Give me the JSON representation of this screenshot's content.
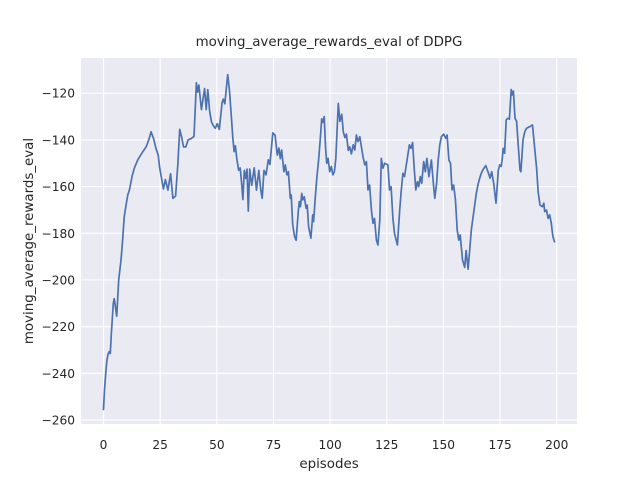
{
  "figure": {
    "title": "moving_average_rewards_eval of DDPG",
    "x_axis_label": "episodes",
    "y_axis_label": "moving_average_rewards_eval"
  },
  "chart_data": {
    "type": "line",
    "title": "moving_average_rewards_eval of DDPG",
    "xlabel": "episodes",
    "ylabel": "moving_average_rewards_eval",
    "x_ticks": [
      0,
      25,
      50,
      75,
      100,
      125,
      150,
      175,
      200
    ],
    "y_ticks": [
      -120,
      -140,
      -160,
      -180,
      -200,
      -220,
      -240,
      -260
    ],
    "xlim": [
      -9.95,
      208.95
    ],
    "ylim": [
      -261.7,
      -104.9
    ],
    "grid": true,
    "legend": false,
    "axes_background": "#eaeaf2",
    "grid_color": "#ffffff",
    "line_color": "#4c72b0",
    "text_color": "#262626",
    "figure_background": "#ffffff",
    "series": [
      {
        "name": "moving_average_rewards_eval",
        "points": [
          [
            0,
            -255.5
          ],
          [
            0.4,
            -247
          ],
          [
            1.1,
            -238.5
          ],
          [
            1.5,
            -234.5
          ],
          [
            1.9,
            -232
          ],
          [
            2.5,
            -230.7
          ],
          [
            3,
            -231.5
          ],
          [
            3.4,
            -224
          ],
          [
            4.3,
            -210
          ],
          [
            4.7,
            -208
          ],
          [
            5.3,
            -212
          ],
          [
            5.8,
            -215.5
          ],
          [
            6.7,
            -200
          ],
          [
            7.7,
            -191.5
          ],
          [
            8.4,
            -183
          ],
          [
            9.1,
            -173
          ],
          [
            10,
            -167.5
          ],
          [
            10.7,
            -163.5
          ],
          [
            11.4,
            -161.5
          ],
          [
            12.6,
            -155.5
          ],
          [
            13.6,
            -152
          ],
          [
            15.1,
            -148.5
          ],
          [
            17,
            -145.5
          ],
          [
            18.8,
            -143
          ],
          [
            20.1,
            -139.5
          ],
          [
            21,
            -136.5
          ],
          [
            22.1,
            -139.5
          ],
          [
            23.1,
            -143.5
          ],
          [
            24.1,
            -146.5
          ],
          [
            24.8,
            -152
          ],
          [
            26.4,
            -161
          ],
          [
            27.3,
            -157
          ],
          [
            28.4,
            -161.5
          ],
          [
            29.6,
            -154.5
          ],
          [
            30.6,
            -165
          ],
          [
            31.8,
            -164
          ],
          [
            32.8,
            -150
          ],
          [
            33.6,
            -135.5
          ],
          [
            34.4,
            -138.5
          ],
          [
            35.3,
            -143
          ],
          [
            36.3,
            -143
          ],
          [
            37.3,
            -140
          ],
          [
            38.5,
            -139.5
          ],
          [
            39.9,
            -138.5
          ],
          [
            41,
            -115.5
          ],
          [
            41.5,
            -119.5
          ],
          [
            42.1,
            -116.5
          ],
          [
            43.2,
            -127
          ],
          [
            44.6,
            -118
          ],
          [
            45.3,
            -127
          ],
          [
            46,
            -118.5
          ],
          [
            46.8,
            -127.5
          ],
          [
            47.6,
            -132.2
          ],
          [
            48.4,
            -133.8
          ],
          [
            49.3,
            -135
          ],
          [
            50.2,
            -133
          ],
          [
            51.1,
            -135.5
          ],
          [
            52.3,
            -124
          ],
          [
            52.9,
            -122.5
          ],
          [
            53.5,
            -124.5
          ],
          [
            54.8,
            -112
          ],
          [
            55.6,
            -119
          ],
          [
            56.3,
            -128.5
          ],
          [
            57,
            -138.5
          ],
          [
            57.6,
            -145
          ],
          [
            58.2,
            -142.5
          ],
          [
            58.8,
            -148
          ],
          [
            59.6,
            -153
          ],
          [
            60.3,
            -152
          ],
          [
            60.9,
            -158
          ],
          [
            61.5,
            -165.5
          ],
          [
            62.1,
            -153
          ],
          [
            62.7,
            -156.5
          ],
          [
            63.3,
            -152.5
          ],
          [
            63.9,
            -170.5
          ],
          [
            64.5,
            -152.5
          ],
          [
            65.4,
            -159.5
          ],
          [
            66.5,
            -152
          ],
          [
            67.5,
            -161.5
          ],
          [
            68.5,
            -153
          ],
          [
            69.4,
            -161.5
          ],
          [
            70,
            -165
          ],
          [
            70.8,
            -153
          ],
          [
            71.7,
            -155
          ],
          [
            72.7,
            -148.5
          ],
          [
            73.4,
            -150.5
          ],
          [
            74.7,
            -137
          ],
          [
            75.7,
            -138
          ],
          [
            76.7,
            -146.5
          ],
          [
            77.4,
            -143.5
          ],
          [
            78,
            -148
          ],
          [
            78.6,
            -144.3
          ],
          [
            79.6,
            -153.6
          ],
          [
            80.2,
            -150.7
          ],
          [
            80.9,
            -155
          ],
          [
            81.6,
            -153.6
          ],
          [
            82.4,
            -165
          ],
          [
            82.8,
            -163.6
          ],
          [
            83.5,
            -176.4
          ],
          [
            84.3,
            -181.4
          ],
          [
            85,
            -183
          ],
          [
            86,
            -170
          ],
          [
            86.4,
            -166.4
          ],
          [
            86.9,
            -168.6
          ],
          [
            87.5,
            -162.9
          ],
          [
            87.9,
            -165.7
          ],
          [
            88.6,
            -164.3
          ],
          [
            89.4,
            -169.3
          ],
          [
            89.9,
            -167.9
          ],
          [
            90.5,
            -177.1
          ],
          [
            91.5,
            -182.1
          ],
          [
            92.3,
            -172.1
          ],
          [
            92.7,
            -175
          ],
          [
            93.4,
            -165
          ],
          [
            94.1,
            -156.4
          ],
          [
            94.9,
            -148.6
          ],
          [
            95.6,
            -140
          ],
          [
            96.3,
            -131
          ],
          [
            96.9,
            -132.5
          ],
          [
            97.4,
            -130
          ],
          [
            98,
            -143.6
          ],
          [
            98.5,
            -150
          ],
          [
            99.1,
            -147.9
          ],
          [
            99.8,
            -153.6
          ],
          [
            100.5,
            -151.4
          ],
          [
            101.2,
            -155
          ],
          [
            101.9,
            -153.6
          ],
          [
            102.5,
            -148
          ],
          [
            103.6,
            -124.3
          ],
          [
            104.3,
            -132
          ],
          [
            105.1,
            -129
          ],
          [
            105.8,
            -136.5
          ],
          [
            106.5,
            -139
          ],
          [
            107.2,
            -137.5
          ],
          [
            108,
            -144.5
          ],
          [
            108.7,
            -143
          ],
          [
            109.4,
            -146
          ],
          [
            110.2,
            -142.1
          ],
          [
            110.9,
            -144.3
          ],
          [
            111.6,
            -137.9
          ],
          [
            112.3,
            -140.7
          ],
          [
            113.1,
            -138.6
          ],
          [
            114.5,
            -147.2
          ],
          [
            115.3,
            -150.7
          ],
          [
            116,
            -149.3
          ],
          [
            116.7,
            -161.4
          ],
          [
            117.4,
            -159.3
          ],
          [
            118.2,
            -170
          ],
          [
            118.9,
            -175.7
          ],
          [
            119.6,
            -173.6
          ],
          [
            120.4,
            -182.9
          ],
          [
            121.1,
            -185
          ],
          [
            121.9,
            -174.3
          ],
          [
            122.6,
            -147.9
          ],
          [
            123.3,
            -152.1
          ],
          [
            124.1,
            -150
          ],
          [
            125.5,
            -150.7
          ],
          [
            126.2,
            -161.4
          ],
          [
            126.9,
            -160
          ],
          [
            127.7,
            -173.6
          ],
          [
            128.4,
            -180
          ],
          [
            129.7,
            -185
          ],
          [
            130.7,
            -170
          ],
          [
            131.4,
            -161.4
          ],
          [
            132.1,
            -154.3
          ],
          [
            132.8,
            -155.7
          ],
          [
            133.6,
            -150.7
          ],
          [
            135,
            -142.1
          ],
          [
            135.7,
            -143.6
          ],
          [
            136.4,
            -141.1
          ],
          [
            137.1,
            -152.1
          ],
          [
            137.8,
            -161.4
          ],
          [
            138.5,
            -157.9
          ],
          [
            139.1,
            -160
          ],
          [
            139.8,
            -155.7
          ],
          [
            140.4,
            -158.6
          ],
          [
            141.3,
            -149.3
          ],
          [
            142,
            -153.6
          ],
          [
            142.7,
            -147.9
          ],
          [
            143.6,
            -155.7
          ],
          [
            144.7,
            -148.6
          ],
          [
            145.5,
            -157.9
          ],
          [
            146.2,
            -165
          ],
          [
            147,
            -158.6
          ],
          [
            147.7,
            -148.6
          ],
          [
            148.4,
            -142.1
          ],
          [
            149.1,
            -138.6
          ],
          [
            150.1,
            -137.5
          ],
          [
            151,
            -139.3
          ],
          [
            151.6,
            -137.9
          ],
          [
            152.4,
            -148.6
          ],
          [
            153.1,
            -150
          ],
          [
            153.8,
            -161.4
          ],
          [
            154.5,
            -159.3
          ],
          [
            155.3,
            -165.4
          ],
          [
            156.1,
            -178.6
          ],
          [
            156.8,
            -182.9
          ],
          [
            157.4,
            -180.7
          ],
          [
            158.4,
            -191.4
          ],
          [
            159.4,
            -194.6
          ],
          [
            160,
            -187.4
          ],
          [
            160.9,
            -195.4
          ],
          [
            161.6,
            -187.1
          ],
          [
            162.3,
            -178.6
          ],
          [
            163.1,
            -172.9
          ],
          [
            163.8,
            -167.9
          ],
          [
            164.5,
            -162.9
          ],
          [
            165.2,
            -159.3
          ],
          [
            166,
            -156.4
          ],
          [
            166.7,
            -154.3
          ],
          [
            167.6,
            -152.5
          ],
          [
            168.7,
            -151
          ],
          [
            169.9,
            -154.3
          ],
          [
            170.6,
            -156.4
          ],
          [
            171.3,
            -153.6
          ],
          [
            172.2,
            -158.6
          ],
          [
            173.2,
            -167.1
          ],
          [
            174.2,
            -153
          ],
          [
            174.9,
            -150.7
          ],
          [
            175.5,
            -151.4
          ],
          [
            176,
            -147.9
          ],
          [
            176.4,
            -143.6
          ],
          [
            177,
            -145.7
          ],
          [
            177.7,
            -131.4
          ],
          [
            178.4,
            -130.7
          ],
          [
            179.1,
            -131.1
          ],
          [
            179.9,
            -118.4
          ],
          [
            180.4,
            -120.7
          ],
          [
            180.9,
            -119.1
          ],
          [
            181.6,
            -130.7
          ],
          [
            182.3,
            -132
          ],
          [
            183,
            -142.1
          ],
          [
            183.8,
            -152.9
          ],
          [
            184.2,
            -153.6
          ],
          [
            185.1,
            -140
          ],
          [
            185.9,
            -136.4
          ],
          [
            186.7,
            -135
          ],
          [
            188.1,
            -134.3
          ],
          [
            189.3,
            -133.6
          ],
          [
            190.3,
            -143.6
          ],
          [
            191.1,
            -152.1
          ],
          [
            191.8,
            -162.1
          ],
          [
            192.6,
            -167.9
          ],
          [
            193.7,
            -168.6
          ],
          [
            194.3,
            -167.1
          ],
          [
            194.7,
            -170.7
          ],
          [
            195.5,
            -170
          ],
          [
            196.2,
            -173.6
          ],
          [
            196.9,
            -172.1
          ],
          [
            197.6,
            -175.7
          ],
          [
            198.3,
            -181.4
          ],
          [
            199,
            -183.6
          ]
        ]
      }
    ]
  }
}
